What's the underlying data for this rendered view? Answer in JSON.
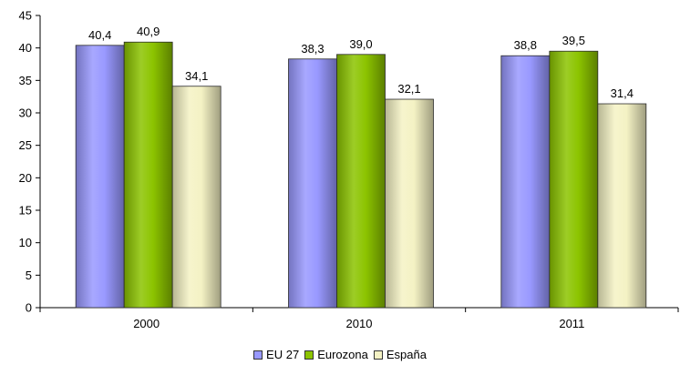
{
  "chart_data": {
    "type": "bar",
    "categories": [
      "2000",
      "2010",
      "2011"
    ],
    "series": [
      {
        "name": "EU 27",
        "values": [
          40.4,
          38.3,
          38.8
        ],
        "labels": [
          "40,4",
          "38,3",
          "38,8"
        ],
        "color": "#9999ff"
      },
      {
        "name": "Eurozona",
        "values": [
          40.9,
          39.0,
          39.5
        ],
        "labels": [
          "40,9",
          "39,0",
          "39,5"
        ],
        "color": "#8cc400"
      },
      {
        "name": "España",
        "values": [
          34.1,
          32.1,
          31.4
        ],
        "labels": [
          "34,1",
          "32,1",
          "31,4"
        ],
        "color": "#f4f2c4"
      }
    ],
    "ylim": [
      0,
      45
    ],
    "yticks": [
      0,
      5,
      10,
      15,
      20,
      25,
      30,
      35,
      40,
      45
    ],
    "grid": false,
    "legend_position": "bottom"
  }
}
